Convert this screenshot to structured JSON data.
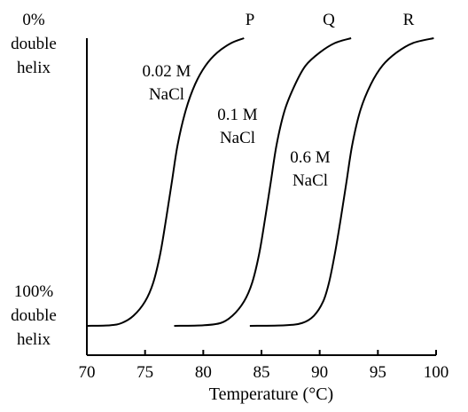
{
  "chart_data": {
    "type": "line",
    "xlabel": "Temperature (°C)",
    "xlim": [
      70,
      100
    ],
    "ylim": [
      0,
      100
    ],
    "x_ticks": [
      70,
      75,
      80,
      85,
      90,
      95,
      100
    ],
    "y_top_label": [
      "0%",
      "double",
      "helix"
    ],
    "y_bottom_label": [
      "100%",
      "double",
      "helix"
    ],
    "series": [
      {
        "name": "P",
        "annotation": [
          "0.02 M",
          "NaCl"
        ],
        "x": [
          70.0,
          72.0,
          73.0,
          74.0,
          75.0,
          75.7,
          76.3,
          76.8,
          77.3,
          77.8,
          78.5,
          79.3,
          80.2,
          81.2,
          82.4,
          83.5
        ],
        "y": [
          0.0,
          0.2,
          1.0,
          3.5,
          8.5,
          15.0,
          25.0,
          37.0,
          50.0,
          63.0,
          75.0,
          84.0,
          90.5,
          95.0,
          98.3,
          100.0
        ]
      },
      {
        "name": "Q",
        "annotation": [
          "0.1 M",
          "NaCl"
        ],
        "x": [
          77.5,
          80.0,
          81.5,
          82.5,
          83.5,
          84.2,
          84.8,
          85.3,
          85.8,
          86.3,
          87.0,
          87.9,
          88.8,
          90.0,
          91.3,
          92.7
        ],
        "y": [
          0.0,
          0.2,
          1.0,
          3.5,
          8.5,
          15.0,
          25.0,
          37.0,
          50.0,
          63.0,
          75.0,
          84.0,
          90.5,
          95.0,
          98.3,
          100.0
        ]
      },
      {
        "name": "R",
        "annotation": [
          "0.6 M",
          "NaCl"
        ],
        "x": [
          84.0,
          87.0,
          88.5,
          89.5,
          90.3,
          90.8,
          91.3,
          91.8,
          92.3,
          92.8,
          93.5,
          94.4,
          95.4,
          96.6,
          98.0,
          99.8
        ],
        "y": [
          0.0,
          0.2,
          1.0,
          3.5,
          8.5,
          15.0,
          25.0,
          37.0,
          50.0,
          63.0,
          75.0,
          84.0,
          90.5,
          95.0,
          98.3,
          100.0
        ]
      }
    ]
  }
}
